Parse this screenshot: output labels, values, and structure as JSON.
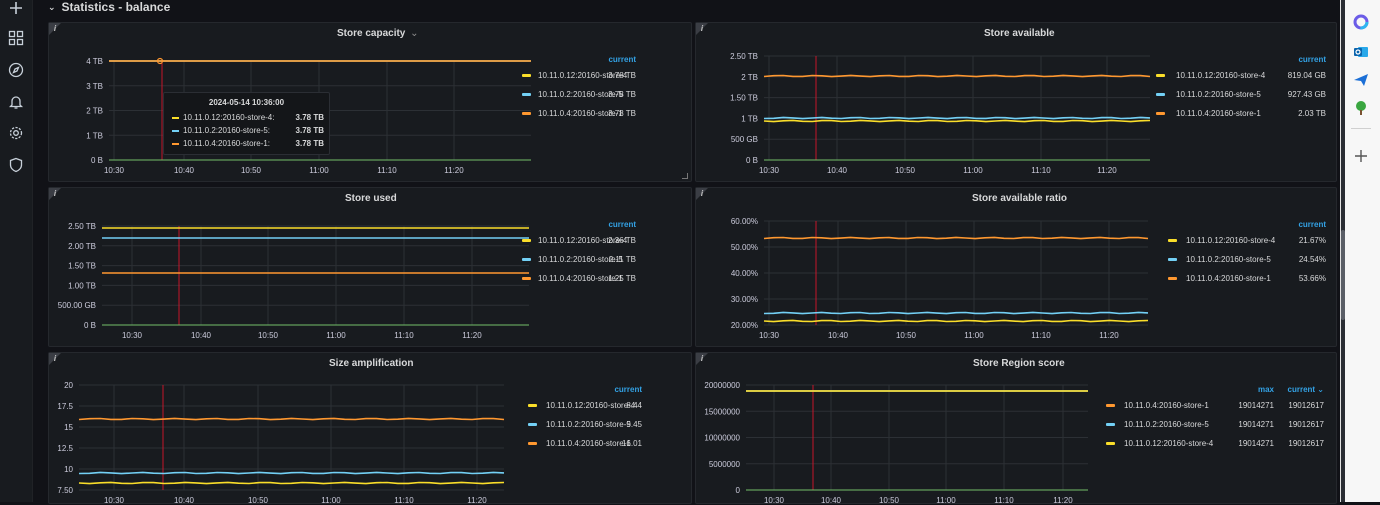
{
  "colors": {
    "store4": "#fade2a",
    "store5": "#73d0f5",
    "store1": "#ff9830",
    "accent": "#33a2e5",
    "marker": "#c4162a",
    "baseline": "#73bf69"
  },
  "nav": {
    "icons": [
      "plus-icon",
      "dashboards-icon",
      "explore-icon",
      "alerting-icon",
      "configuration-icon",
      "shield-icon"
    ]
  },
  "row": {
    "title": "Statistics - balance"
  },
  "panels": [
    {
      "id": "store-capacity",
      "title": "Store capacity",
      "title_suffix": "⌄",
      "y_ticks": [
        "4 TB",
        "3 TB",
        "2 TB",
        "1 TB",
        "0 B"
      ],
      "x_ticks": [
        "10:30",
        "10:40",
        "10:50",
        "11:00",
        "11:10",
        "11:20"
      ],
      "legend_headers": [
        "current"
      ],
      "legend": [
        {
          "name": "10.11.0.12:20160-store-4",
          "color": "store4",
          "values": [
            "3.78 TB"
          ]
        },
        {
          "name": "10.11.0.2:20160-store-5",
          "color": "store5",
          "values": [
            "3.78 TB"
          ]
        },
        {
          "name": "10.11.0.4:20160-store-1",
          "color": "store1",
          "values": [
            "3.78 TB"
          ]
        }
      ]
    },
    {
      "id": "store-available",
      "title": "Store available",
      "y_ticks": [
        "2.50 TB",
        "2 TB",
        "1.50 TB",
        "1 TB",
        "500 GB",
        "0 B"
      ],
      "x_ticks": [
        "10:30",
        "10:40",
        "10:50",
        "11:00",
        "11:10",
        "11:20"
      ],
      "legend_headers": [
        "current"
      ],
      "legend": [
        {
          "name": "10.11.0.12:20160-store-4",
          "color": "store4",
          "values": [
            "819.04 GB"
          ]
        },
        {
          "name": "10.11.0.2:20160-store-5",
          "color": "store5",
          "values": [
            "927.43 GB"
          ]
        },
        {
          "name": "10.11.0.4:20160-store-1",
          "color": "store1",
          "values": [
            "2.03 TB"
          ]
        }
      ]
    },
    {
      "id": "store-used",
      "title": "Store used",
      "y_ticks": [
        "2.50 TB",
        "2.00 TB",
        "1.50 TB",
        "1.00 TB",
        "500.00 GB",
        "0 B"
      ],
      "x_ticks": [
        "10:30",
        "10:40",
        "10:50",
        "11:00",
        "11:10",
        "11:20"
      ],
      "legend_headers": [
        "current"
      ],
      "legend": [
        {
          "name": "10.11.0.12:20160-store-4",
          "color": "store4",
          "values": [
            "2.36 TB"
          ]
        },
        {
          "name": "10.11.0.2:20160-store-5",
          "color": "store5",
          "values": [
            "2.11 TB"
          ]
        },
        {
          "name": "10.11.0.4:20160-store-1",
          "color": "store1",
          "values": [
            "1.25 TB"
          ]
        }
      ]
    },
    {
      "id": "store-available-ratio",
      "title": "Store available ratio",
      "y_ticks": [
        "60.00%",
        "50.00%",
        "40.00%",
        "30.00%",
        "20.00%"
      ],
      "x_ticks": [
        "10:30",
        "10:40",
        "10:50",
        "11:00",
        "11:10",
        "11:20"
      ],
      "legend_headers": [
        "current"
      ],
      "legend": [
        {
          "name": "10.11.0.12:20160-store-4",
          "color": "store4",
          "values": [
            "21.67%"
          ]
        },
        {
          "name": "10.11.0.2:20160-store-5",
          "color": "store5",
          "values": [
            "24.54%"
          ]
        },
        {
          "name": "10.11.0.4:20160-store-1",
          "color": "store1",
          "values": [
            "53.66%"
          ]
        }
      ]
    },
    {
      "id": "size-amplification",
      "title": "Size amplification",
      "y_ticks": [
        "20",
        "17.5",
        "15",
        "12.5",
        "10",
        "7.50"
      ],
      "x_ticks": [
        "10:30",
        "10:40",
        "10:50",
        "11:00",
        "11:10",
        "11:20"
      ],
      "legend_headers": [
        "current"
      ],
      "legend": [
        {
          "name": "10.11.0.12:20160-store-4",
          "color": "store4",
          "values": [
            "8.44"
          ]
        },
        {
          "name": "10.11.0.2:20160-store-5",
          "color": "store5",
          "values": [
            "9.45"
          ]
        },
        {
          "name": "10.11.0.4:20160-store-1",
          "color": "store1",
          "values": [
            "16.01"
          ]
        }
      ]
    },
    {
      "id": "store-region-score",
      "title": "Store Region score",
      "y_ticks": [
        "20000000",
        "15000000",
        "10000000",
        "5000000",
        "0"
      ],
      "x_ticks": [
        "10:30",
        "10:40",
        "10:50",
        "11:00",
        "11:10",
        "11:20"
      ],
      "legend_headers": [
        "max",
        "current ⌄"
      ],
      "legend": [
        {
          "name": "10.11.0.4:20160-store-1",
          "color": "store1",
          "values": [
            "19014271",
            "19012617"
          ]
        },
        {
          "name": "10.11.0.2:20160-store-5",
          "color": "store5",
          "values": [
            "19014271",
            "19012617"
          ]
        },
        {
          "name": "10.11.0.12:20160-store-4",
          "color": "store4",
          "values": [
            "19014271",
            "19012617"
          ]
        }
      ]
    }
  ],
  "tooltip": {
    "title": "2024-05-14 10:36:00",
    "rows": [
      {
        "name": "10.11.0.12:20160-store-4:",
        "color": "store4",
        "value": "3.78 TB"
      },
      {
        "name": "10.11.0.2:20160-store-5:",
        "color": "store5",
        "value": "3.78 TB"
      },
      {
        "name": "10.11.0.4:20160-store-1:",
        "color": "store1",
        "value": "3.78 TB"
      }
    ]
  },
  "browser_sidebar": {
    "icons": [
      "copilot-icon",
      "outlook-icon",
      "send-icon",
      "tree-icon",
      "add-icon"
    ]
  }
}
